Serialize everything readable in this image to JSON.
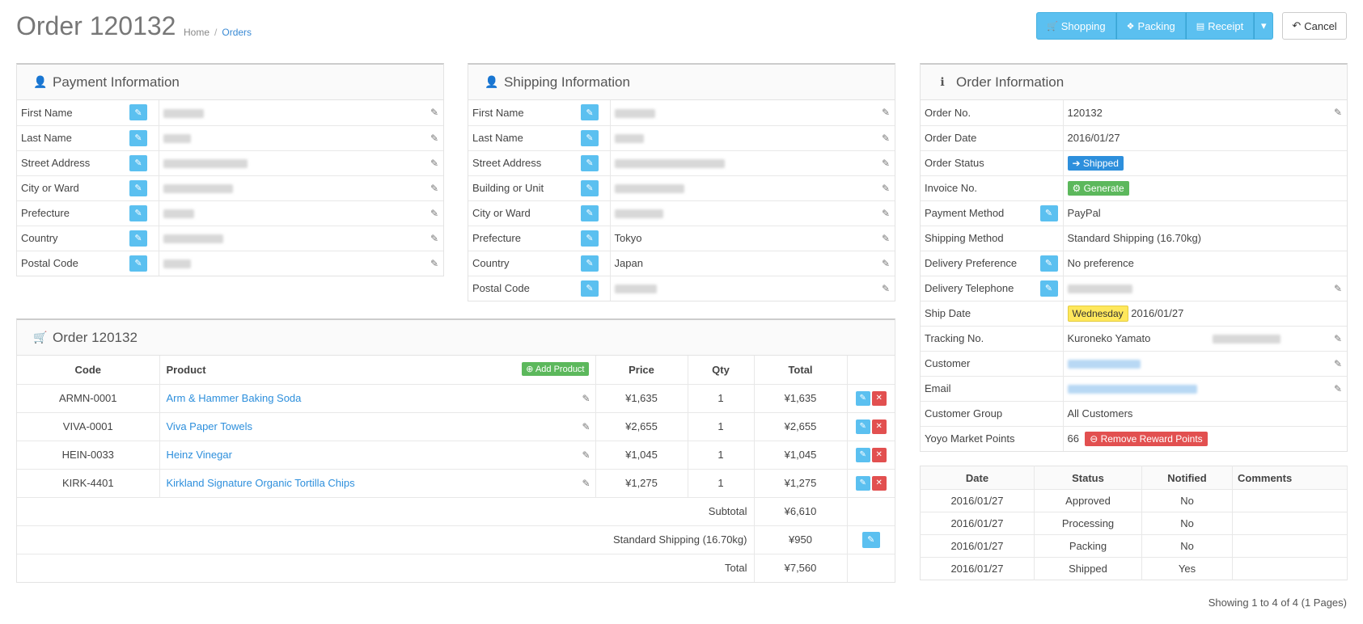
{
  "header": {
    "title": "Order 120132",
    "breadcrumb": {
      "home": "Home",
      "orders": "Orders"
    },
    "buttons": {
      "shopping": "Shopping",
      "packing": "Packing",
      "receipt": "Receipt",
      "cancel": "Cancel"
    }
  },
  "payment": {
    "title": "Payment Information",
    "rows": [
      {
        "label": "First Name",
        "blur_w": 50
      },
      {
        "label": "Last Name",
        "blur_w": 34
      },
      {
        "label": "Street Address",
        "blur_w": 104
      },
      {
        "label": "City or Ward",
        "blur_w": 86
      },
      {
        "label": "Prefecture",
        "blur_w": 38
      },
      {
        "label": "Country",
        "blur_w": 74
      },
      {
        "label": "Postal Code",
        "blur_w": 34
      }
    ]
  },
  "shipping": {
    "title": "Shipping Information",
    "rows": [
      {
        "label": "First Name",
        "value": "",
        "blur_w": 50
      },
      {
        "label": "Last Name",
        "value": "",
        "blur_w": 36
      },
      {
        "label": "Street Address",
        "value": "",
        "blur_w": 136
      },
      {
        "label": "Building or Unit",
        "value": "",
        "blur_w": 86
      },
      {
        "label": "City or Ward",
        "value": "",
        "blur_w": 60
      },
      {
        "label": "Prefecture",
        "value": "Tokyo",
        "blur_w": 0
      },
      {
        "label": "Country",
        "value": "Japan",
        "blur_w": 0
      },
      {
        "label": "Postal Code",
        "value": "",
        "blur_w": 52
      }
    ]
  },
  "order_info": {
    "title": "Order Information",
    "order_no_label": "Order No.",
    "order_no": "120132",
    "order_date_label": "Order Date",
    "order_date": "2016/01/27",
    "status_label": "Order Status",
    "status": "Shipped",
    "invoice_label": "Invoice No.",
    "invoice_btn": "Generate",
    "payment_method_label": "Payment Method",
    "payment_method": "PayPal",
    "shipping_method_label": "Shipping Method",
    "shipping_method": "Standard Shipping (16.70kg)",
    "delivery_pref_label": "Delivery Preference",
    "delivery_pref": "No preference",
    "delivery_tel_label": "Delivery Telephone",
    "ship_date_label": "Ship Date",
    "ship_day": "Wednesday",
    "ship_date": "2016/01/27",
    "tracking_label": "Tracking No.",
    "tracking_carrier": "Kuroneko Yamato",
    "customer_label": "Customer",
    "email_label": "Email",
    "group_label": "Customer Group",
    "group": "All Customers",
    "points_label": "Yoyo Market Points",
    "points": "66",
    "remove_points_btn": "Remove Reward Points"
  },
  "order_products": {
    "title": "Order 120132",
    "headers": {
      "code": "Code",
      "product": "Product",
      "price": "Price",
      "qty": "Qty",
      "total": "Total"
    },
    "add_product": "Add Product",
    "items": [
      {
        "code": "ARMN-0001",
        "product": "Arm & Hammer Baking Soda",
        "price": "¥1,635",
        "qty": "1",
        "total": "¥1,635"
      },
      {
        "code": "VIVA-0001",
        "product": "Viva Paper Towels",
        "price": "¥2,655",
        "qty": "1",
        "total": "¥2,655"
      },
      {
        "code": "HEIN-0033",
        "product": "Heinz Vinegar",
        "price": "¥1,045",
        "qty": "1",
        "total": "¥1,045"
      },
      {
        "code": "KIRK-4401",
        "product": "Kirkland Signature Organic Tortilla Chips",
        "price": "¥1,275",
        "qty": "1",
        "total": "¥1,275"
      }
    ],
    "subtotal_label": "Subtotal",
    "subtotal": "¥6,610",
    "shipping_label": "Standard Shipping (16.70kg)",
    "shipping": "¥950",
    "total_label": "Total",
    "total": "¥7,560"
  },
  "history": {
    "headers": {
      "date": "Date",
      "status": "Status",
      "notified": "Notified",
      "comments": "Comments"
    },
    "rows": [
      {
        "date": "2016/01/27",
        "status": "Approved",
        "notified": "No",
        "comments": ""
      },
      {
        "date": "2016/01/27",
        "status": "Processing",
        "notified": "No",
        "comments": ""
      },
      {
        "date": "2016/01/27",
        "status": "Packing",
        "notified": "No",
        "comments": ""
      },
      {
        "date": "2016/01/27",
        "status": "Shipped",
        "notified": "Yes",
        "comments": ""
      }
    ],
    "pager": "Showing 1 to 4 of 4 (1 Pages)"
  },
  "colors": {
    "accent": "#5bc0f0",
    "link": "#2d8fdc",
    "success": "#5cb85c",
    "danger": "#e25050",
    "highlight": "#ffe85c"
  },
  "icons": {
    "user": "user-icon",
    "info": "info-icon",
    "cart": "cart-icon",
    "pencil": "pencil-icon",
    "edit_square": "edit-square-icon"
  }
}
